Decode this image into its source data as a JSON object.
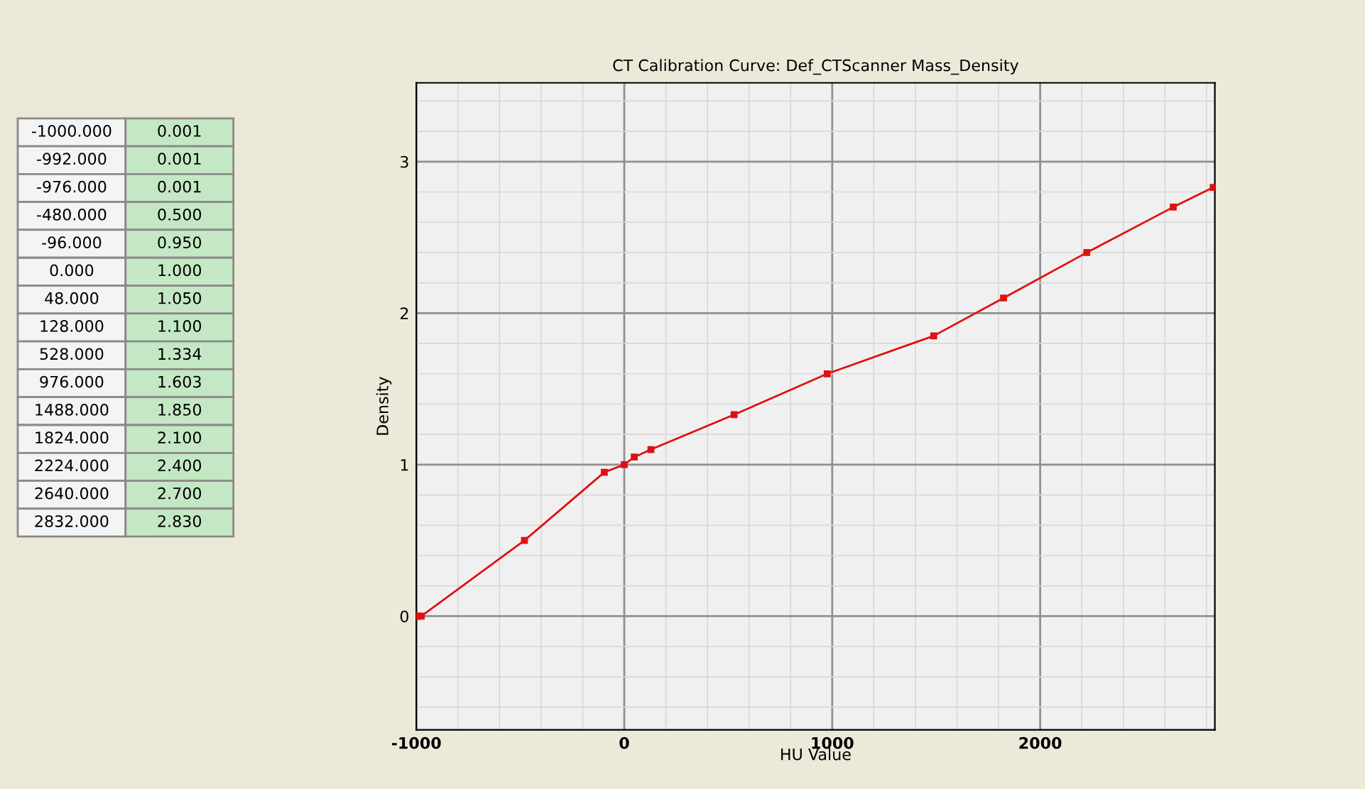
{
  "chart_data": [
    {
      "type": "other",
      "annotations": [
        "-1000.000",
        "0.001",
        "-992.000",
        "0.001",
        "-976.000",
        "0.001",
        "-480.000",
        "0.500",
        "-96.000",
        "0.950",
        "0.000",
        "1.000",
        "48.000",
        "1.050",
        "128.000",
        "1.100",
        "528.000",
        "1.334",
        "976.000",
        "1.603",
        "1488.000",
        "1.850",
        "1824.000",
        "2.100",
        "2224.000",
        "2.400",
        "2640.000",
        "2.700",
        "2832.000",
        "2.830"
      ]
    },
    {
      "type": "line",
      "title": "CT Calibration Curve: Def_CTScanner Mass_Density",
      "xlabel": "HU Value",
      "ylabel": "Density",
      "x": [
        -1000,
        -992,
        -976,
        -480,
        -96,
        0,
        48,
        128,
        528,
        976,
        1488,
        1824,
        2224,
        2640,
        2832
      ],
      "series": [
        {
          "color": "#e01010",
          "values": [
            0.0,
            0.0,
            0.0,
            0.5,
            0.95,
            1.0,
            1.05,
            1.1,
            1.33,
            1.6,
            1.85,
            2.1,
            2.4,
            2.7,
            2.83
          ]
        }
      ],
      "xlim": [
        -1000,
        2840
      ],
      "ylim": [
        -0.75,
        3.52
      ],
      "xticks": [
        -1000,
        0,
        1000,
        2000
      ],
      "yticks": [
        0,
        1,
        2,
        3
      ],
      "grid": true,
      "marker": "square",
      "line_style": "solid"
    }
  ]
}
